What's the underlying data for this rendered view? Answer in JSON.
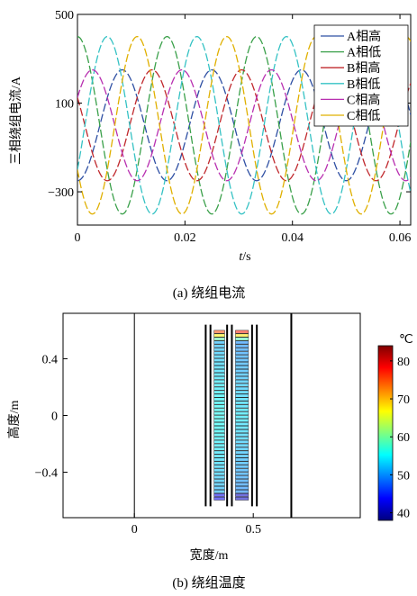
{
  "chart_data": [
    {
      "type": "line",
      "caption": "(a)  绕组电流",
      "xlabel_italic": "t",
      "xlabel_unit": "/s",
      "ylabel": "三相绕组电流/A",
      "xlim": [
        0,
        0.062
      ],
      "ylim": [
        -450,
        500
      ],
      "xticks": [
        "0",
        "0.02",
        "0.04",
        "0.06"
      ],
      "xtick_values": [
        0,
        0.02,
        0.04,
        0.06
      ],
      "yticks": [
        "500",
        "100",
        "−300"
      ],
      "ytick_values": [
        500,
        100,
        -300
      ],
      "frequency_hz": 60,
      "legend_position": "top-right",
      "grid": false,
      "series": [
        {
          "name": "A相高",
          "amplitude": 250,
          "phase_deg": -90,
          "color": "#2e4fa3"
        },
        {
          "name": "A相低",
          "amplitude": 400,
          "phase_deg": 90,
          "color": "#3aa04a"
        },
        {
          "name": "B相高",
          "amplitude": 250,
          "phase_deg": 150,
          "color": "#c0282d"
        },
        {
          "name": "B相低",
          "amplitude": 400,
          "phase_deg": -30,
          "color": "#35c2c4"
        },
        {
          "name": "C相高",
          "amplitude": 250,
          "phase_deg": 30,
          "color": "#b82fb0"
        },
        {
          "name": "C相低",
          "amplitude": 400,
          "phase_deg": -150,
          "color": "#e0b000"
        }
      ]
    },
    {
      "type": "heatmap",
      "caption": "(b)  绕组温度",
      "xlabel": "宽度/m",
      "ylabel": "高度/m",
      "xlim": [
        -0.3,
        0.95
      ],
      "ylim": [
        -0.72,
        0.72
      ],
      "xticks": [
        "0",
        "0.5"
      ],
      "xtick_values": [
        0,
        0.5
      ],
      "yticks": [
        "0.4",
        "0",
        "−0.4"
      ],
      "ytick_values": [
        0.4,
        0,
        -0.4
      ],
      "colorbar": {
        "unit": "℃",
        "min": 38,
        "max": 84,
        "ticks": [
          "80",
          "70",
          "60",
          "50",
          "40"
        ],
        "tick_values": [
          80,
          70,
          60,
          50,
          40
        ]
      },
      "vertical_lines_x": [
        0,
        0.3,
        0.32,
        0.39,
        0.41,
        0.495,
        0.515,
        0.66
      ],
      "winding_blocks": [
        {
          "x0": 0.335,
          "x1": 0.38,
          "y0": -0.6,
          "y1": 0.6,
          "temp_mid": 56,
          "temp_top": 80
        },
        {
          "x0": 0.425,
          "x1": 0.48,
          "y0": -0.6,
          "y1": 0.6,
          "temp_mid": 54,
          "temp_top": 82
        }
      ]
    }
  ]
}
